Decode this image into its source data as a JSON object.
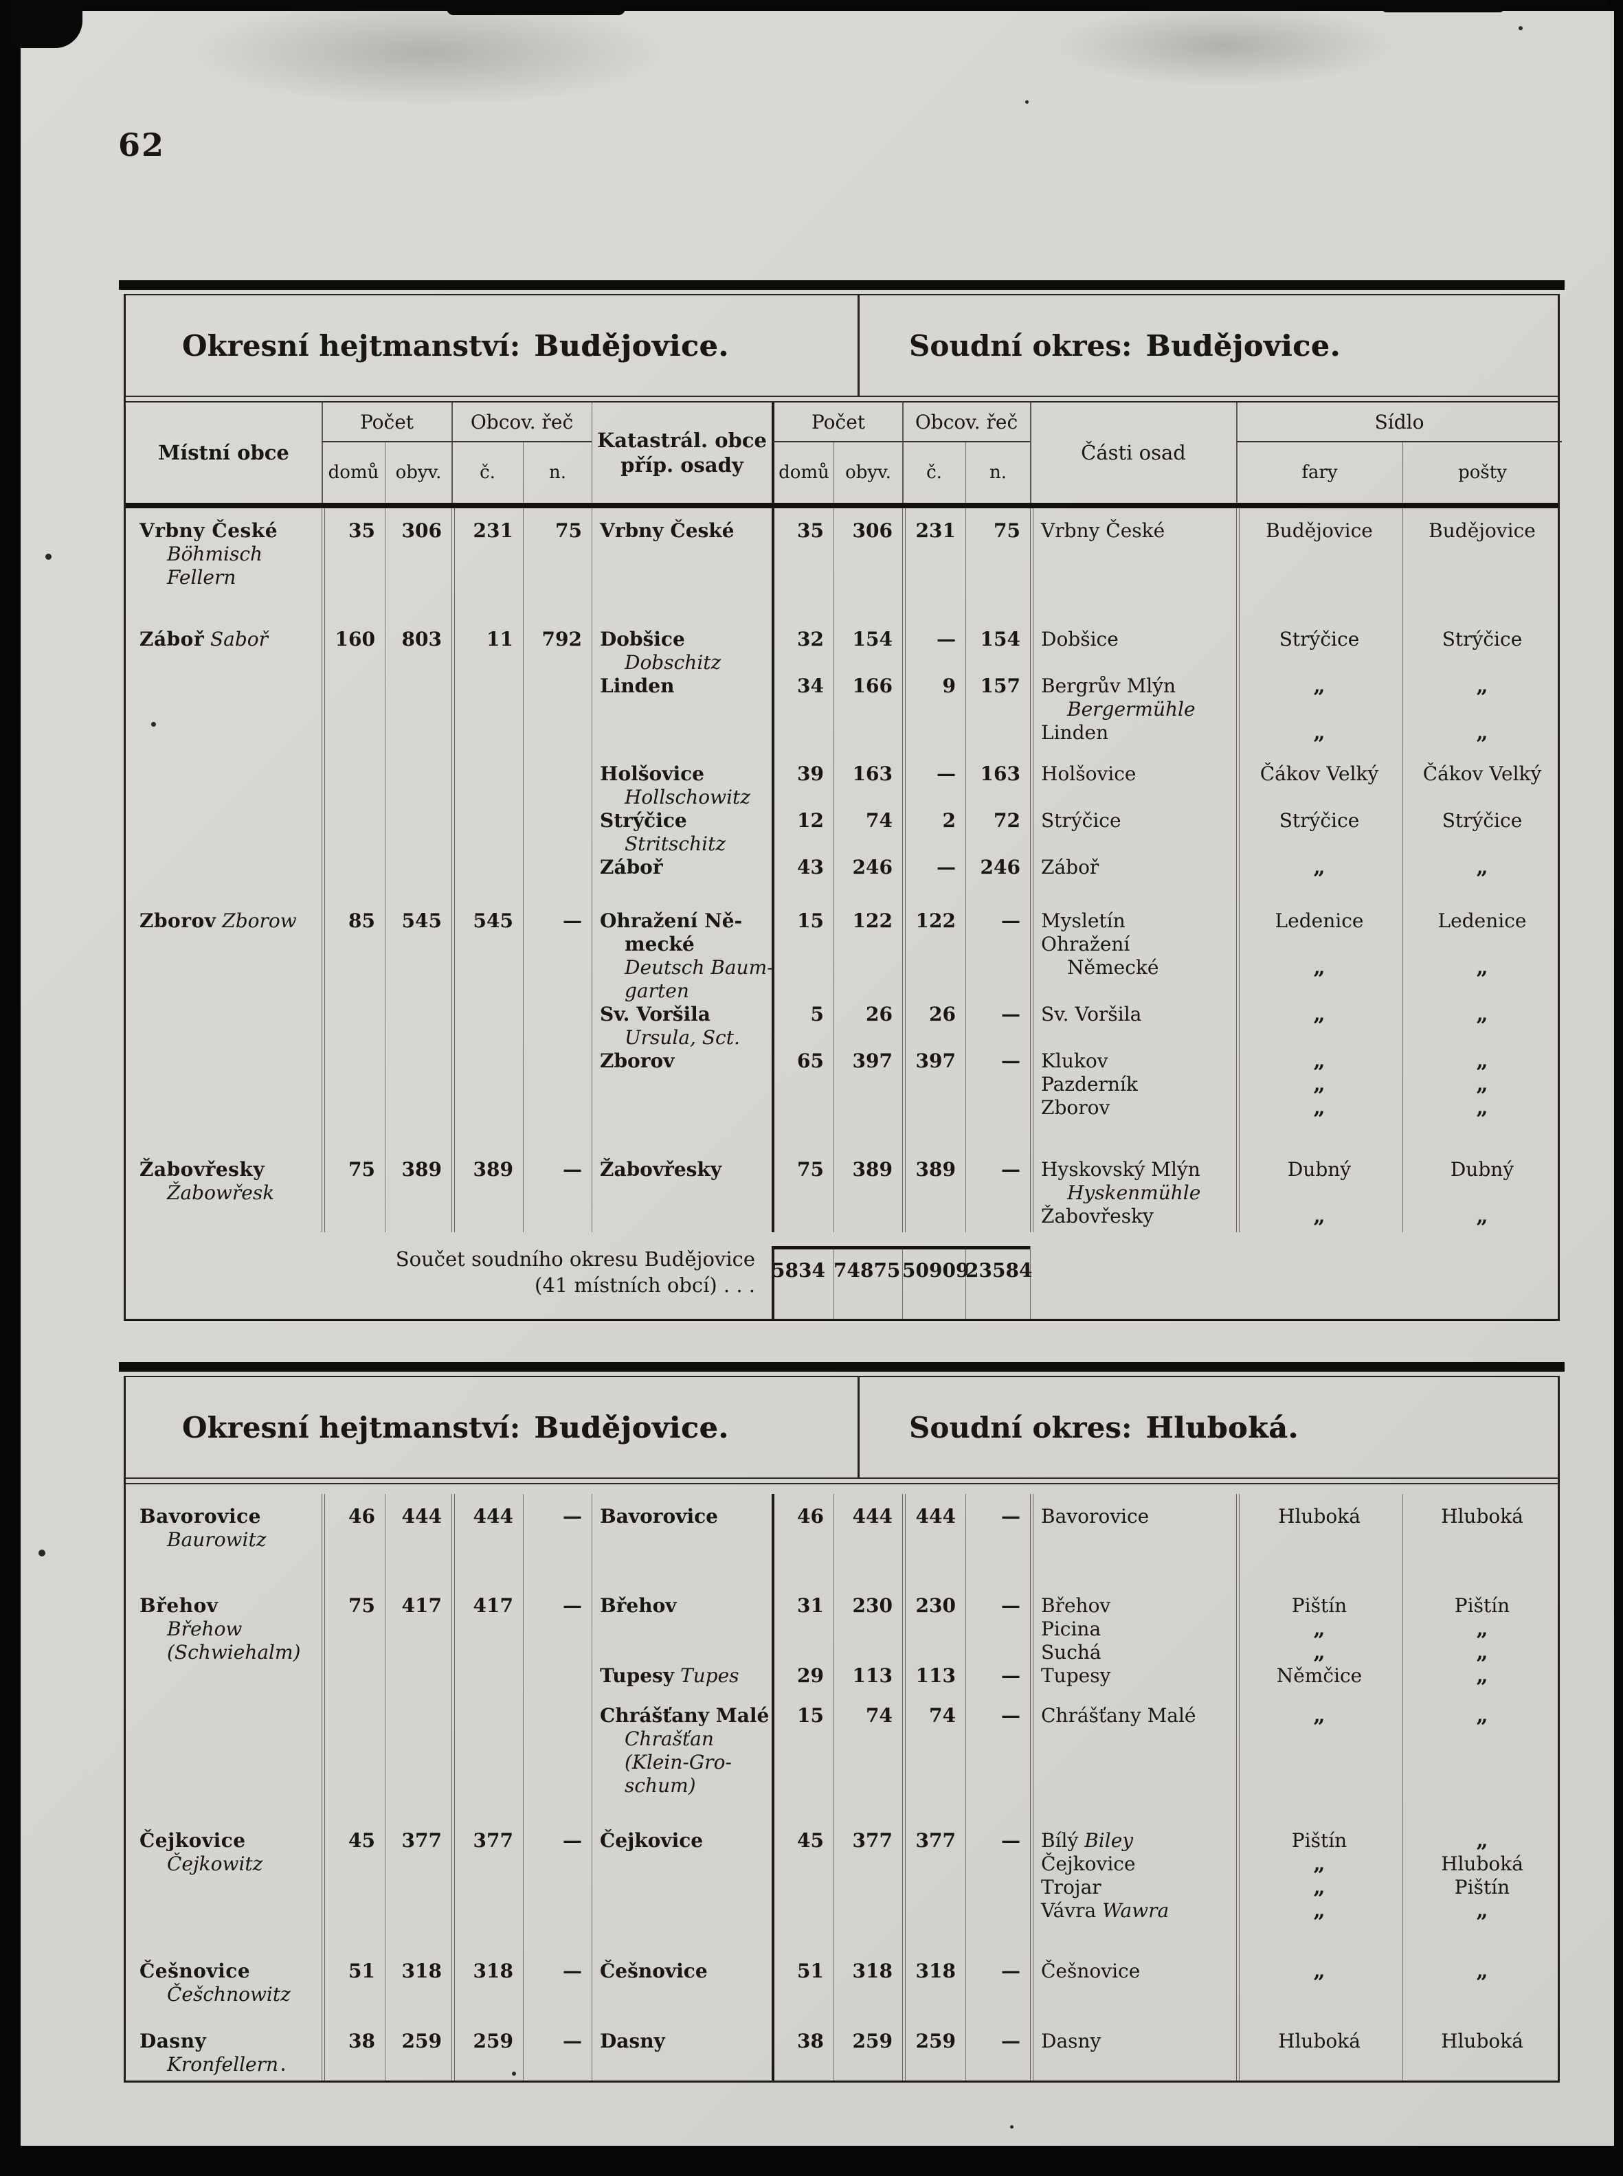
{
  "page": {
    "number": "62",
    "colors": {
      "paper": "#d6d5d1",
      "ink": "#1a1713"
    }
  },
  "headers": {
    "mistni_obce": "Místní obce",
    "pocet": "Počet",
    "domu": "domů",
    "obyv": "obyv.",
    "obcov_rec": "Obcov. řeč",
    "c": "č.",
    "n": "n.",
    "katastral_1": "Katastrál. obce",
    "katastral_2": "příp. osady",
    "casti_osad": "Části osad",
    "sidlo": "Sídlo",
    "fary": "fary",
    "posty": "pošty"
  },
  "tables": [
    {
      "title_left_label": "Okresní hejtmanství:",
      "title_left_value": "Budějovice.",
      "title_right_label": "Soudní okres:",
      "title_right_value": "Budějovice.",
      "has_column_headers": true,
      "lines": [
        {
          "obec": [
            [
              "b",
              "Vrbny České"
            ]
          ],
          "d1": "35",
          "o1": "306",
          "c1": "231",
          "n1": "75",
          "kat": [
            [
              "b",
              "Vrbny České"
            ]
          ],
          "d2": "35",
          "o2": "306",
          "c2": "231",
          "n2": "75",
          "cast": [
            [
              "r",
              "Vrbny České"
            ]
          ],
          "fara": "Budějovice",
          "posta": "Budějovice"
        },
        {
          "obec": [
            [
              "@i",
              "Böhmisch"
            ]
          ]
        },
        {
          "obec": [
            [
              "@i",
              "Fellern"
            ]
          ]
        },
        {
          "sp": 56
        },
        {
          "obec": [
            [
              "b",
              "Záboř"
            ],
            [
              "i",
              " Saboř"
            ]
          ],
          "d1": "160",
          "o1": "803",
          "c1": "11",
          "n1": "792",
          "kat": [
            [
              "b",
              "Dobšice"
            ]
          ],
          "d2": "32",
          "o2": "154",
          "c2": "—",
          "n2": "154",
          "cast": [
            [
              "r",
              "Dobšice"
            ]
          ],
          "fara": "Strýčice",
          "posta": "Strýčice"
        },
        {
          "kat": [
            [
              "@i",
              "Dobschitz"
            ]
          ]
        },
        {
          "kat": [
            [
              "b",
              "Linden"
            ]
          ],
          "d2": "34",
          "o2": "166",
          "c2": "9",
          "n2": "157",
          "cast": [
            [
              "r",
              "Bergrův Mlýn"
            ]
          ],
          "fara": "„",
          "posta": "„"
        },
        {
          "cast": [
            [
              "@i",
              "Bergermühle"
            ]
          ]
        },
        {
          "cast": [
            [
              "r",
              "Linden"
            ]
          ],
          "fara": "„",
          "posta": "„"
        },
        {
          "sp": 26
        },
        {
          "kat": [
            [
              "b",
              "Holšovice"
            ]
          ],
          "d2": "39",
          "o2": "163",
          "c2": "—",
          "n2": "163",
          "cast": [
            [
              "r",
              "Holšovice"
            ]
          ],
          "fara": "Čákov Velký",
          "posta": "Čákov Velký"
        },
        {
          "kat": [
            [
              "@i",
              "Hollschowitz"
            ]
          ]
        },
        {
          "kat": [
            [
              "b",
              "Strýčice"
            ]
          ],
          "d2": "12",
          "o2": "74",
          "c2": "2",
          "n2": "72",
          "cast": [
            [
              "r",
              "Strýčice"
            ]
          ],
          "fara": "Strýčice",
          "posta": "Strýčice"
        },
        {
          "kat": [
            [
              "@i",
              "Stritschitz"
            ]
          ]
        },
        {
          "kat": [
            [
              "b",
              "Záboř"
            ]
          ],
          "d2": "43",
          "o2": "246",
          "c2": "—",
          "n2": "246",
          "cast": [
            [
              "r",
              "Záboř"
            ]
          ],
          "fara": "„",
          "posta": "„"
        },
        {
          "sp": 44
        },
        {
          "obec": [
            [
              "b",
              "Zborov"
            ],
            [
              "i",
              " Zborow"
            ]
          ],
          "d1": "85",
          "o1": "545",
          "c1": "545",
          "n1": "—",
          "kat": [
            [
              "b",
              "Ohražení Ně-"
            ]
          ],
          "d2": "15",
          "o2": "122",
          "c2": "122",
          "n2": "—",
          "cast": [
            [
              "r",
              "Mysletín"
            ]
          ],
          "fara": "Ledenice",
          "posta": "Ledenice"
        },
        {
          "kat": [
            [
              "@b",
              "mecké"
            ]
          ],
          "cast": [
            [
              "r",
              "Ohražení"
            ]
          ]
        },
        {
          "kat": [
            [
              "@i",
              "Deutsch Baum-"
            ]
          ],
          "cast": [
            [
              "@r",
              "Německé"
            ]
          ],
          "fara": "„",
          "posta": "„"
        },
        {
          "kat": [
            [
              "@i",
              "garten"
            ]
          ]
        },
        {
          "kat": [
            [
              "b",
              "Sv. Voršila"
            ]
          ],
          "d2": "5",
          "o2": "26",
          "c2": "26",
          "n2": "—",
          "cast": [
            [
              "r",
              "Sv. Voršila"
            ]
          ],
          "fara": "„",
          "posta": "„"
        },
        {
          "kat": [
            [
              "@i",
              "Ursula, Sct."
            ]
          ]
        },
        {
          "kat": [
            [
              "b",
              "Zborov"
            ]
          ],
          "d2": "65",
          "o2": "397",
          "c2": "397",
          "n2": "—",
          "cast": [
            [
              "r",
              "Klukov"
            ]
          ],
          "fara": "„",
          "posta": "„"
        },
        {
          "cast": [
            [
              "r",
              "Pazderník"
            ]
          ],
          "fara": "„",
          "posta": "„"
        },
        {
          "cast": [
            [
              "r",
              "Zborov"
            ]
          ],
          "fara": "„",
          "posta": "„"
        },
        {
          "sp": 56
        },
        {
          "obec": [
            [
              "b",
              "Žabovřesky"
            ]
          ],
          "d1": "75",
          "o1": "389",
          "c1": "389",
          "n1": "—",
          "kat": [
            [
              "b",
              "Žabovřesky"
            ]
          ],
          "d2": "75",
          "o2": "389",
          "c2": "389",
          "n2": "—",
          "cast": [
            [
              "r",
              "Hyskovský Mlýn"
            ]
          ],
          "fara": "Dubný",
          "posta": "Dubný"
        },
        {
          "obec": [
            [
              "@i",
              "Žabowřesk"
            ]
          ],
          "cast": [
            [
              "@i",
              "Hyskenmühle"
            ]
          ]
        },
        {
          "cast": [
            [
              "r",
              "Žabovřesky"
            ]
          ],
          "fara": "„",
          "posta": "„"
        }
      ],
      "summary": {
        "line1": "Součet soudního okresu Budějovice",
        "line2": "(41 místních obcí) . . .",
        "values": {
          "d2": "5834",
          "o2": "74875",
          "c2": "50909",
          "n2": "23584"
        }
      }
    },
    {
      "title_left_label": "Okresní hejtmanství:",
      "title_left_value": "Budějovice.",
      "title_right_label": "Soudní okres:",
      "title_right_value": "Hluboká.",
      "has_column_headers": false,
      "lines": [
        {
          "obec": [
            [
              "b",
              "Bavorovice"
            ]
          ],
          "d1": "46",
          "o1": "444",
          "c1": "444",
          "n1": "—",
          "kat": [
            [
              "b",
              "Bavorovice"
            ]
          ],
          "d2": "46",
          "o2": "444",
          "c2": "444",
          "n2": "—",
          "cast": [
            [
              "r",
              "Bavorovice"
            ]
          ],
          "fara": "Hluboká",
          "posta": "Hluboká"
        },
        {
          "obec": [
            [
              "@i",
              "Baurowitz"
            ]
          ]
        },
        {
          "sp": 62
        },
        {
          "obec": [
            [
              "b",
              "Břehov"
            ]
          ],
          "d1": "75",
          "o1": "417",
          "c1": "417",
          "n1": "—",
          "kat": [
            [
              "b",
              "Břehov"
            ]
          ],
          "d2": "31",
          "o2": "230",
          "c2": "230",
          "n2": "—",
          "cast": [
            [
              "r",
              "Břehov"
            ]
          ],
          "fara": "Pištín",
          "posta": "Pištín"
        },
        {
          "obec": [
            [
              "@i",
              "Břehow"
            ]
          ],
          "cast": [
            [
              "r",
              "Picina"
            ]
          ],
          "fara": "„",
          "posta": "„"
        },
        {
          "obec": [
            [
              "@i",
              "(Schwiehalm)"
            ]
          ],
          "cast": [
            [
              "r",
              "Suchá"
            ]
          ],
          "fara": "„",
          "posta": "„"
        },
        {
          "kat": [
            [
              "b",
              "Tupesy"
            ],
            [
              "i",
              " Tupes"
            ]
          ],
          "d2": "29",
          "o2": "113",
          "c2": "113",
          "n2": "—",
          "cast": [
            [
              "r",
              "Tupesy"
            ]
          ],
          "fara": "Němčice",
          "posta": "„"
        },
        {
          "sp": 24
        },
        {
          "kat": [
            [
              "b",
              "Chrášťany Malé"
            ]
          ],
          "d2": "15",
          "o2": "74",
          "c2": "74",
          "n2": "—",
          "cast": [
            [
              "r",
              "Chrášťany Malé"
            ]
          ],
          "fara": "„",
          "posta": "„"
        },
        {
          "kat": [
            [
              "@i",
              "Chrašťan"
            ]
          ]
        },
        {
          "kat": [
            [
              "@i",
              "(Klein-Gro-"
            ]
          ]
        },
        {
          "kat": [
            [
              "@i",
              "schum)"
            ]
          ]
        },
        {
          "sp": 46
        },
        {
          "obec": [
            [
              "b",
              "Čejkovice"
            ]
          ],
          "d1": "45",
          "o1": "377",
          "c1": "377",
          "n1": "—",
          "kat": [
            [
              "b",
              "Čejkovice"
            ]
          ],
          "d2": "45",
          "o2": "377",
          "c2": "377",
          "n2": "—",
          "cast": [
            [
              "r",
              "Bílý "
            ],
            [
              "i",
              "Biley"
            ]
          ],
          "fara": "Pištín",
          "posta": "„"
        },
        {
          "obec": [
            [
              "@i",
              "Čejkowitz"
            ]
          ],
          "cast": [
            [
              "r",
              "Čejkovice"
            ]
          ],
          "fara": "„",
          "posta": "Hluboká"
        },
        {
          "cast": [
            [
              "r",
              "Trojar"
            ]
          ],
          "fara": "„",
          "posta": "Pištín"
        },
        {
          "cast": [
            [
              "r",
              "Vávra "
            ],
            [
              "i",
              "Wawra"
            ]
          ],
          "fara": "„",
          "posta": "„"
        },
        {
          "sp": 54
        },
        {
          "obec": [
            [
              "b",
              "Češnovice"
            ]
          ],
          "d1": "51",
          "o1": "318",
          "c1": "318",
          "n1": "—",
          "kat": [
            [
              "b",
              "Češnovice"
            ]
          ],
          "d2": "51",
          "o2": "318",
          "c2": "318",
          "n2": "—",
          "cast": [
            [
              "r",
              "Češnovice"
            ]
          ],
          "fara": "„",
          "posta": "„"
        },
        {
          "obec": [
            [
              "@i",
              "Češchnowitz"
            ]
          ]
        },
        {
          "sp": 34
        },
        {
          "obec": [
            [
              "b",
              "Dasny"
            ]
          ],
          "d1": "38",
          "o1": "259",
          "c1": "259",
          "n1": "—",
          "kat": [
            [
              "b",
              "Dasny"
            ]
          ],
          "d2": "38",
          "o2": "259",
          "c2": "259",
          "n2": "—",
          "cast": [
            [
              "r",
              "Dasny"
            ]
          ],
          "fara": "Hluboká",
          "posta": "Hluboká"
        },
        {
          "obec": [
            [
              "@i",
              "Kronfellern"
            ]
          ]
        }
      ]
    }
  ]
}
